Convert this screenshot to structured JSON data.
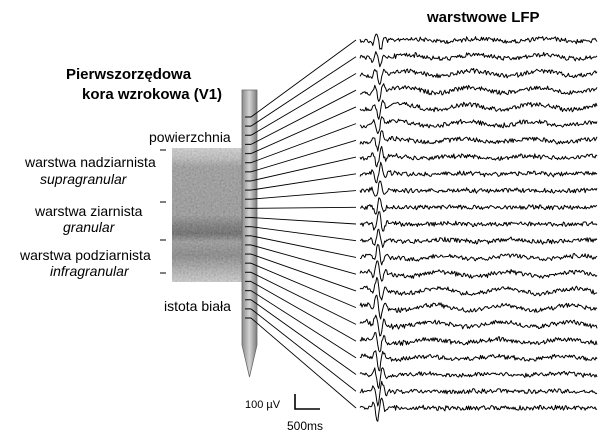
{
  "title_right": "warstwowe LFP",
  "title_left": [
    "Pierwszorzędowa",
    "kora wzrokowa (V1)"
  ],
  "layers": {
    "surface": "powierzchnia",
    "supragranular": {
      "pl": "warstwa nadziarnista",
      "latin": "supragranular"
    },
    "granular": {
      "pl": "warstwa ziarnista",
      "latin": "granular"
    },
    "infragranular": {
      "pl": "warstwa podziarnista",
      "latin": "infragranular"
    },
    "white_matter": "istota biała"
  },
  "scale_bar": {
    "amplitude": "100 µV",
    "time": "500ms"
  },
  "electrode": {
    "contacts": 23
  },
  "traces": {
    "count": 23
  }
}
